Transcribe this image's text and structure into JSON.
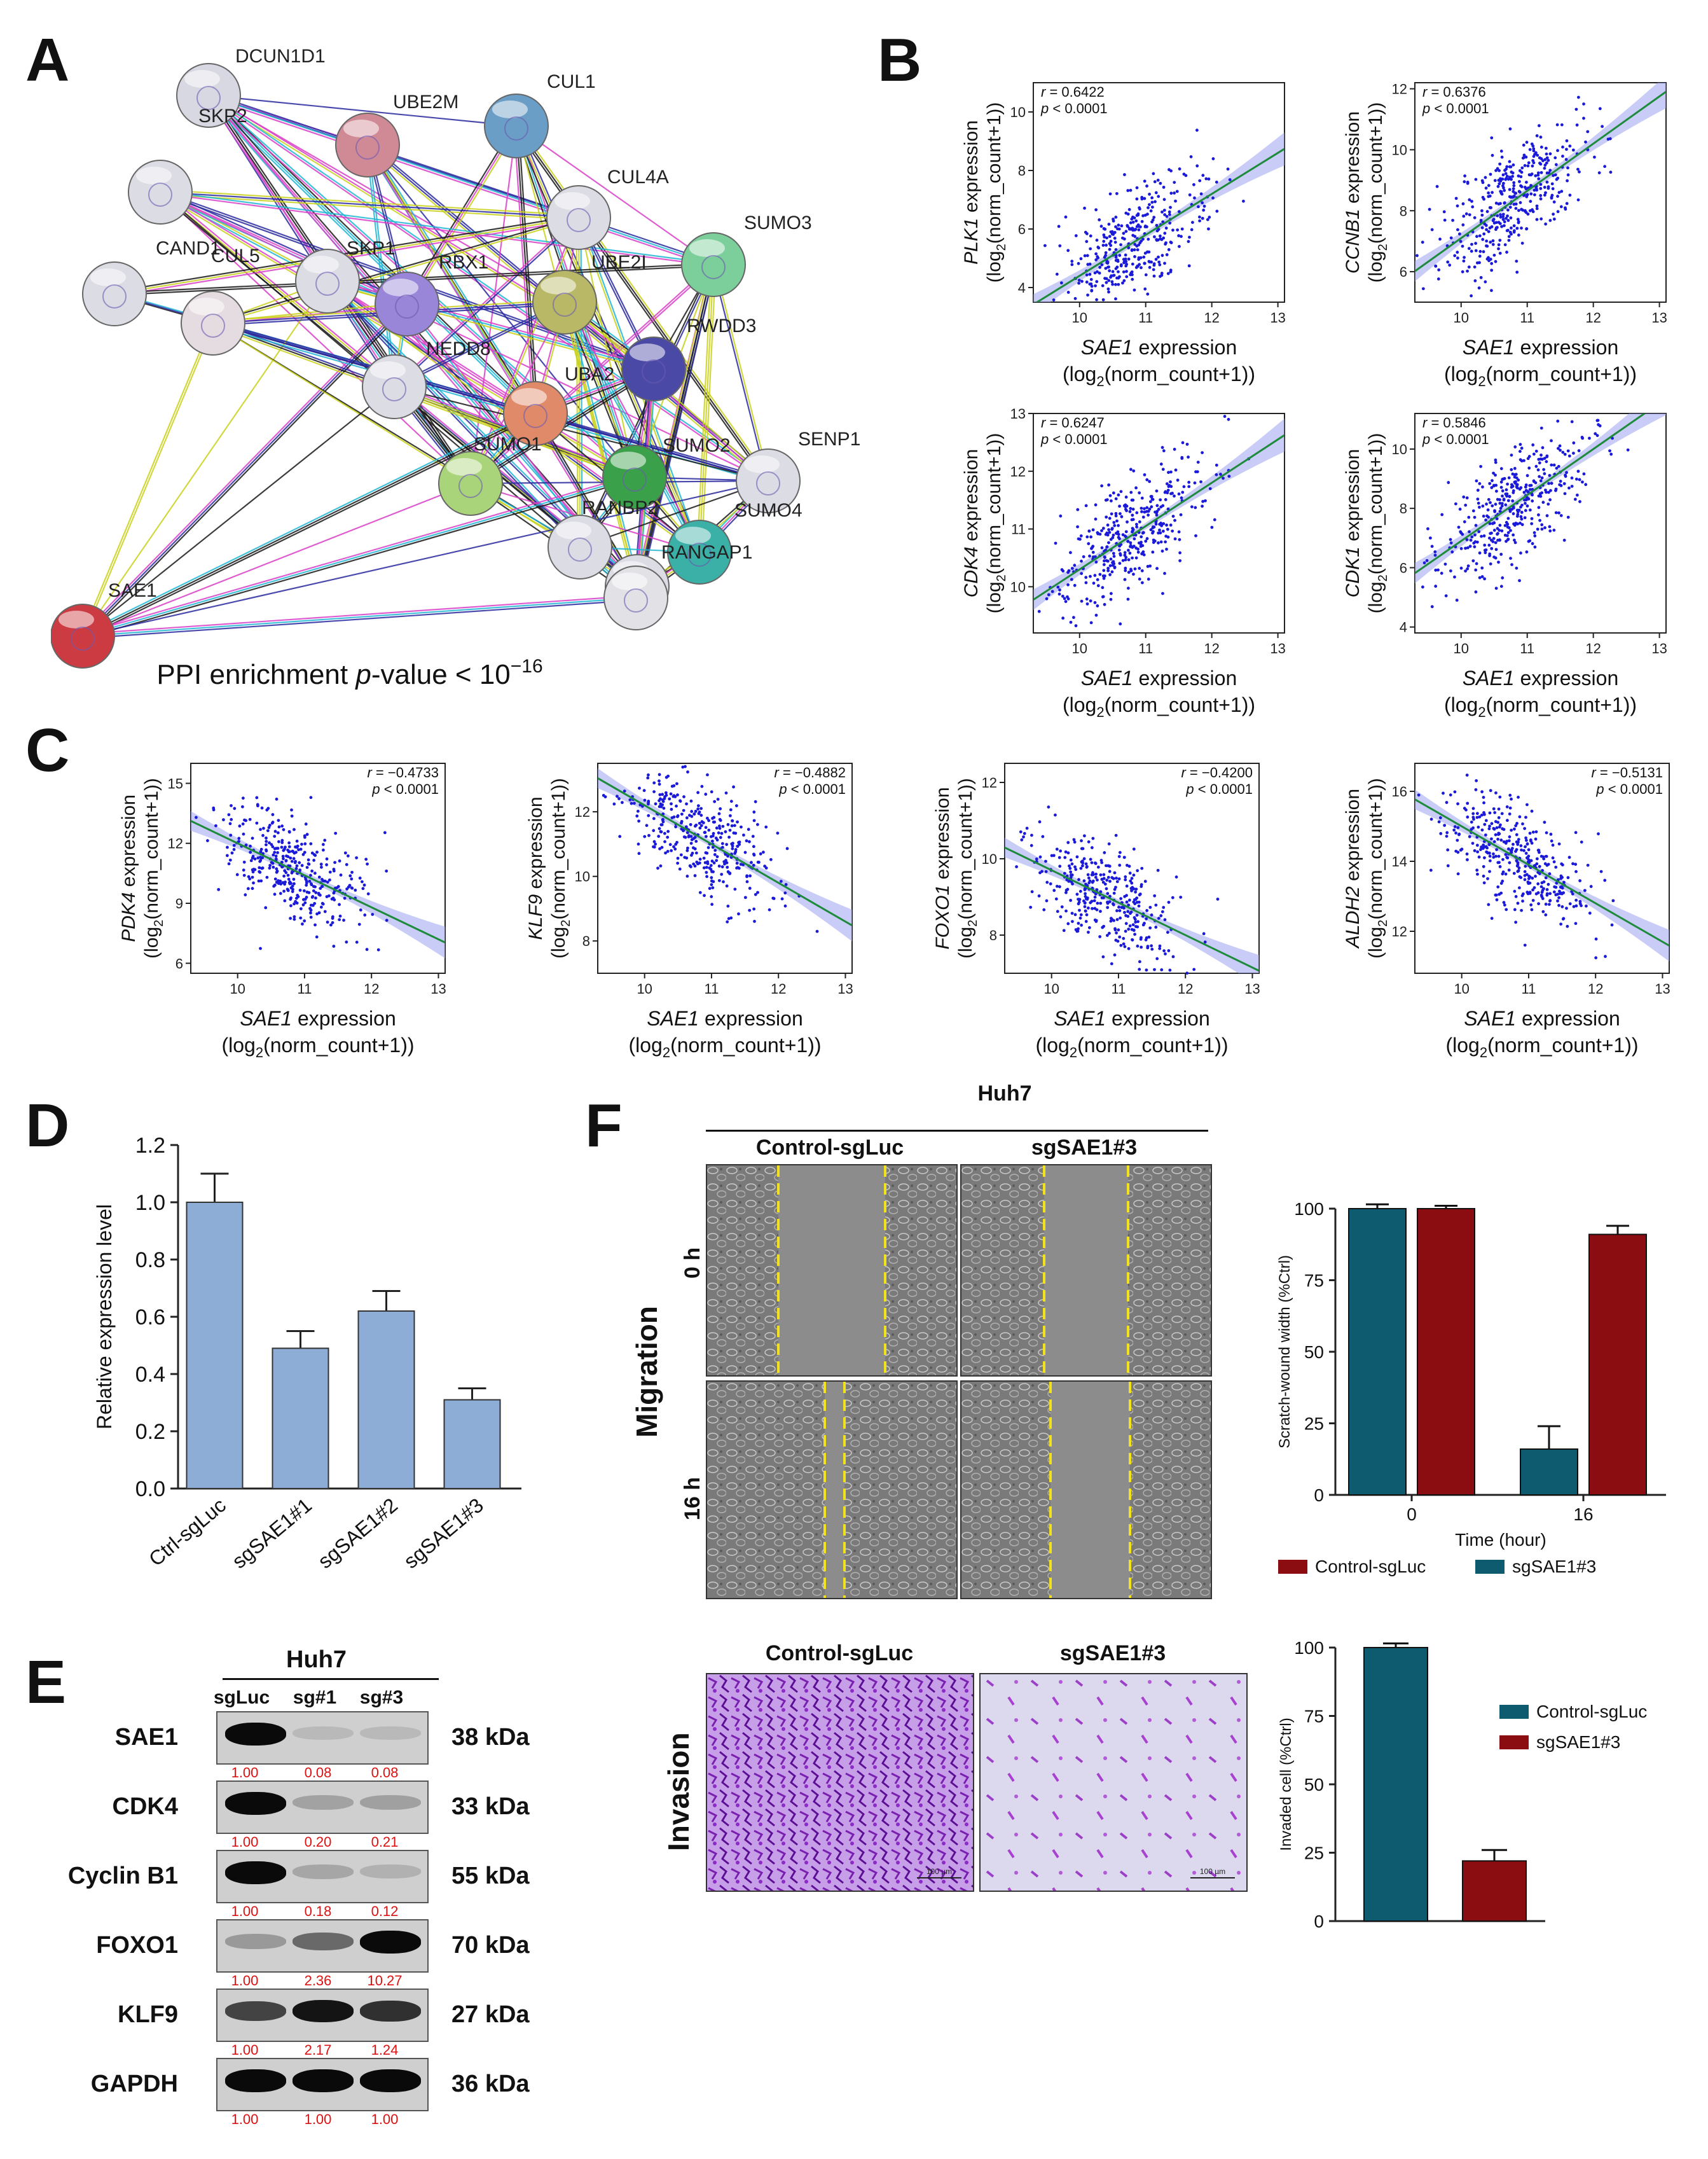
{
  "panels": {
    "A": "A",
    "B": "B",
    "C": "C",
    "D": "D",
    "E": "E",
    "F": "F"
  },
  "colors": {
    "teal": "#0e5a6e",
    "maroon": "#8b0d12",
    "bar_blue": "#8eadd6",
    "scatter": "#1a1ad8",
    "fit": "#1e8a3c",
    "band": "#9aa2ef",
    "ppi_rbx": "#a58ad8"
  },
  "network": {
    "caption_pre": "PPI enrichment ",
    "caption_italic": "p",
    "caption_post": "-value < 10",
    "caption_exp": "−16",
    "nodes": [
      {
        "name": "DCUN1D1",
        "color": "#d8d8e2"
      },
      {
        "name": "UBE2M",
        "color": "#d08a96"
      },
      {
        "name": "CUL1",
        "color": "#6a9ec6"
      },
      {
        "name": "SKP2",
        "color": "#dcdce4"
      },
      {
        "name": "CUL4A",
        "color": "#dcdce4"
      },
      {
        "name": "SUMO3",
        "color": "#7ccf9a"
      },
      {
        "name": "CAND1",
        "color": "#dcdce4"
      },
      {
        "name": "SKP1",
        "color": "#dcdce4"
      },
      {
        "name": "RBX1",
        "color": "#9a86d8"
      },
      {
        "name": "UBE2I",
        "color": "#b8b866"
      },
      {
        "name": "CUL5",
        "color": "#e4dce0"
      },
      {
        "name": "RWDD3",
        "color": "#4a4aa6"
      },
      {
        "name": "NEDD8",
        "color": "#dcdce4"
      },
      {
        "name": "UBA2",
        "color": "#e08a6a"
      },
      {
        "name": "SUMO1",
        "color": "#aad47a"
      },
      {
        "name": "SUMO2",
        "color": "#3aa04a"
      },
      {
        "name": "SENP1",
        "color": "#dcdce4"
      },
      {
        "name": "RANBP2",
        "color": "#dcdce4"
      },
      {
        "name": "SUMO4",
        "color": "#3ab0a6"
      },
      {
        "name": "RANGAP1",
        "color": "#dcdce4"
      },
      {
        "name": "SAE1",
        "color": "#cc3a42"
      },
      {
        "name": "",
        "color": "#e2e2e6"
      }
    ]
  },
  "common": {
    "sae1_label": "SAE1",
    "expr_suffix": " expression",
    "log_pre": "(log",
    "log_sub": "2",
    "log_post": "(norm_count+1))",
    "r_label": "r",
    "p_label": "p",
    "p_value": " < 0.0001"
  },
  "chart_data": [
    {
      "id": "B1",
      "type": "scatter",
      "gene": "PLK1",
      "r": " = 0.6422",
      "xlim": [
        9.3,
        13.1
      ],
      "ylim": [
        3.5,
        11
      ],
      "xticks": [
        10,
        11,
        12,
        13
      ],
      "yticks": [
        4,
        6,
        8,
        10
      ],
      "slope": 1.4,
      "intercept": -9.6,
      "n": 400
    },
    {
      "id": "B2",
      "type": "scatter",
      "gene": "CCNB1",
      "r": " = 0.6376",
      "xlim": [
        9.3,
        13.1
      ],
      "ylim": [
        5,
        12.2
      ],
      "xticks": [
        10,
        11,
        12,
        13
      ],
      "yticks": [
        6,
        8,
        10,
        12
      ],
      "slope": 1.55,
      "intercept": -8.4,
      "n": 400
    },
    {
      "id": "B3",
      "type": "scatter",
      "gene": "CDK4",
      "r": " = 0.6247",
      "xlim": [
        9.3,
        13.1
      ],
      "ylim": [
        9.2,
        13
      ],
      "xticks": [
        10,
        11,
        12,
        13
      ],
      "yticks": [
        10,
        11,
        12,
        13
      ],
      "slope": 0.75,
      "intercept": 2.8,
      "n": 400
    },
    {
      "id": "B4",
      "type": "scatter",
      "gene": "CDK1",
      "r": " = 0.5846",
      "xlim": [
        9.3,
        13.1
      ],
      "ylim": [
        3.8,
        11.2
      ],
      "xticks": [
        10,
        11,
        12,
        13
      ],
      "yticks": [
        4,
        6,
        8,
        10
      ],
      "slope": 1.55,
      "intercept": -8.6,
      "n": 400
    },
    {
      "id": "C1",
      "type": "scatter",
      "gene": "PDK4",
      "r": " = −0.4733",
      "xlim": [
        9.3,
        13.1
      ],
      "ylim": [
        5.5,
        16
      ],
      "xticks": [
        10,
        11,
        12,
        13
      ],
      "yticks": [
        6,
        9,
        12,
        15
      ],
      "slope": -1.6,
      "intercept": 28,
      "n": 380
    },
    {
      "id": "C2",
      "type": "scatter",
      "gene": "KLF9",
      "r": " = −0.4882",
      "xlim": [
        9.3,
        13.1
      ],
      "ylim": [
        7,
        13.5
      ],
      "xticks": [
        10,
        11,
        12,
        13
      ],
      "yticks": [
        8,
        10,
        12
      ],
      "slope": -1.2,
      "intercept": 24.2,
      "n": 380
    },
    {
      "id": "C3",
      "type": "scatter",
      "gene": "FOXO1",
      "r": " = −0.4200",
      "xlim": [
        9.3,
        13.1
      ],
      "ylim": [
        7,
        12.5
      ],
      "xticks": [
        10,
        11,
        12,
        13
      ],
      "yticks": [
        8,
        10,
        12
      ],
      "slope": -0.85,
      "intercept": 18.2,
      "n": 380
    },
    {
      "id": "C4",
      "type": "scatter",
      "gene": "ALDH2",
      "r": " = −0.5131",
      "xlim": [
        9.3,
        13.1
      ],
      "ylim": [
        10.8,
        16.8
      ],
      "xticks": [
        10,
        11,
        12,
        13
      ],
      "yticks": [
        12,
        14,
        16
      ],
      "slope": -1.1,
      "intercept": 26.0,
      "n": 380
    },
    {
      "id": "D",
      "type": "bar",
      "categories": [
        "Ctrl-sgLuc",
        "sgSAE1#1",
        "sgSAE1#2",
        "sgSAE1#3"
      ],
      "values": [
        1.0,
        0.49,
        0.62,
        0.31
      ],
      "errors": [
        0.1,
        0.06,
        0.07,
        0.04
      ],
      "ylabel": "Relative expression level",
      "ylim": [
        0,
        1.2
      ],
      "yticks": [
        "0.0",
        "0.2",
        "0.4",
        "0.6",
        "0.8",
        "1.0",
        "1.2"
      ]
    },
    {
      "id": "F-migration",
      "type": "bar",
      "categories": [
        "0",
        "16"
      ],
      "series": [
        {
          "name": "sgSAE1#3",
          "values": [
            100,
            16
          ],
          "errors": [
            1.5,
            8
          ]
        },
        {
          "name": "Control-sgLuc",
          "values": [
            100,
            91
          ],
          "errors": [
            1,
            3
          ]
        }
      ],
      "xlabel": "Time (hour)",
      "ylabel": "Scratch-wound width (%Ctrl)",
      "ylim": [
        0,
        100
      ],
      "yticks": [
        "0",
        "25",
        "50",
        "75",
        "100"
      ],
      "legend": [
        "Control-sgLuc",
        "sgSAE1#3"
      ]
    },
    {
      "id": "F-invasion",
      "type": "bar",
      "categories": [
        "Control-sgLuc",
        "sgSAE1#3"
      ],
      "values": [
        100,
        22
      ],
      "errors": [
        1.5,
        4
      ],
      "ylabel": "Invaded cell (%Ctrl)",
      "ylim": [
        0,
        100
      ],
      "yticks": [
        "0",
        "25",
        "50",
        "75",
        "100"
      ],
      "legend": [
        "Control-sgLuc",
        "sgSAE1#3"
      ]
    }
  ],
  "western": {
    "title": "Huh7",
    "lanes": [
      "sgLuc",
      "sg#1",
      "sg#3"
    ],
    "rows": [
      {
        "label": "SAE1",
        "kda": "38 kDa",
        "q": [
          "1.00",
          "0.08",
          "0.08"
        ],
        "int": [
          1.0,
          0.08,
          0.08
        ]
      },
      {
        "label": "CDK4",
        "kda": "33 kDa",
        "q": [
          "1.00",
          "0.20",
          "0.21"
        ],
        "int": [
          1.0,
          0.2,
          0.21
        ]
      },
      {
        "label": "Cyclin B1",
        "kda": "55 kDa",
        "q": [
          "1.00",
          "0.18",
          "0.12"
        ],
        "int": [
          1.0,
          0.18,
          0.12
        ]
      },
      {
        "label": "FOXO1",
        "kda": "70 kDa",
        "q": [
          "1.00",
          "2.36",
          "10.27"
        ],
        "int": [
          0.25,
          0.5,
          1.0
        ]
      },
      {
        "label": "KLF9",
        "kda": "27 kDa",
        "q": [
          "1.00",
          "2.17",
          "1.24"
        ],
        "int": [
          0.7,
          0.95,
          0.8
        ]
      },
      {
        "label": "GAPDH",
        "kda": "36 kDa",
        "q": [
          "1.00",
          "1.00",
          "1.00"
        ],
        "int": [
          1.0,
          1.0,
          1.0
        ]
      }
    ]
  },
  "panelF": {
    "title": "Huh7",
    "col_headers": [
      "Control-sgLuc",
      "sgSAE1#3"
    ],
    "migration_label": "Migration",
    "time_labels": [
      "0 h",
      "16 h"
    ],
    "invasion_label": "Invasion",
    "inv_headers": [
      "Control-sgLuc",
      "sgSAE1#3"
    ],
    "scale_label": "100 µm"
  }
}
